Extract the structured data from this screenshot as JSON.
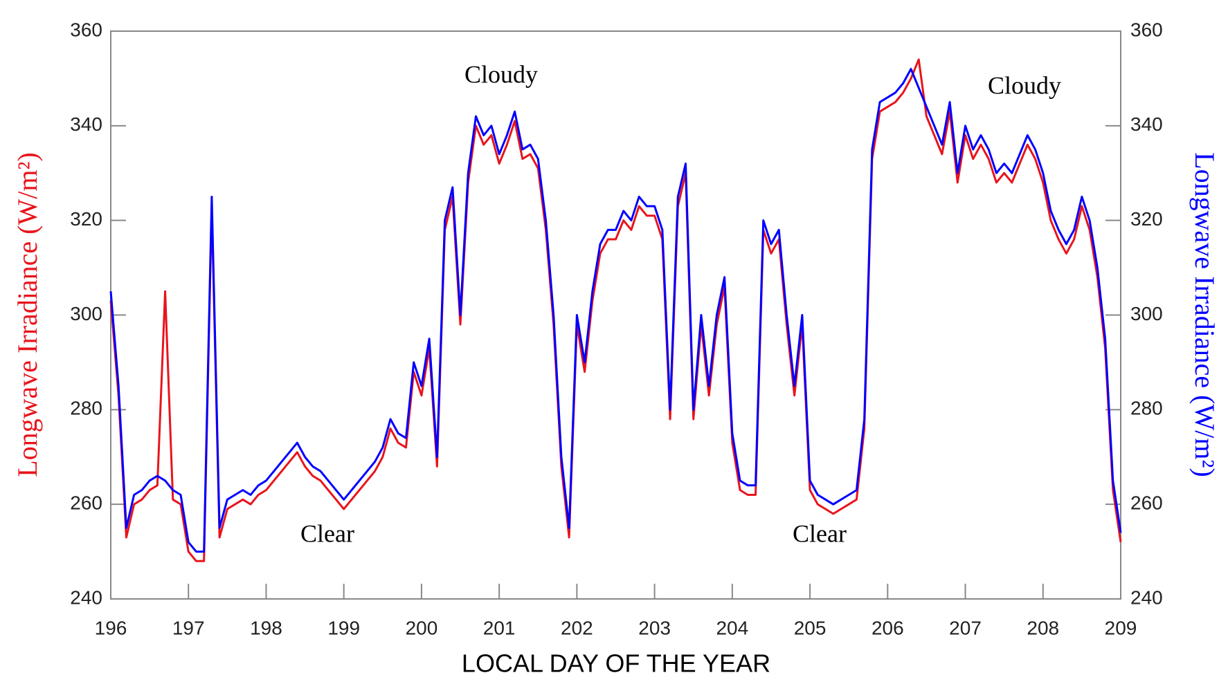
{
  "chart_data": {
    "type": "line",
    "xlabel": "LOCAL DAY OF THE YEAR",
    "ylabel": "Longwave Irradiance (W/m²)",
    "y2label": "Longwave Irradiance (W/m²)",
    "annotations": [
      "Cloudy",
      "Clear",
      "Clear",
      "Cloudy"
    ],
    "x": [
      196,
      196.1,
      196.2,
      196.3,
      196.4,
      196.5,
      196.6,
      196.7,
      196.8,
      196.9,
      197,
      197.1,
      197.2,
      197.3,
      197.4,
      197.5,
      197.6,
      197.7,
      197.8,
      197.9,
      198,
      198.1,
      198.2,
      198.3,
      198.4,
      198.5,
      198.6,
      198.7,
      198.8,
      198.9,
      199,
      199.1,
      199.2,
      199.3,
      199.4,
      199.5,
      199.6,
      199.7,
      199.8,
      199.9,
      200,
      200.1,
      200.2,
      200.3,
      200.4,
      200.5,
      200.6,
      200.7,
      200.8,
      200.9,
      201,
      201.1,
      201.2,
      201.3,
      201.4,
      201.5,
      201.6,
      201.7,
      201.8,
      201.9,
      202,
      202.1,
      202.2,
      202.3,
      202.4,
      202.5,
      202.6,
      202.7,
      202.8,
      202.9,
      203,
      203.1,
      203.2,
      203.3,
      203.4,
      203.5,
      203.6,
      203.7,
      203.8,
      203.9,
      204,
      204.1,
      204.2,
      204.3,
      204.4,
      204.5,
      204.6,
      204.7,
      204.8,
      204.9,
      205,
      205.1,
      205.2,
      205.3,
      205.4,
      205.5,
      205.6,
      205.7,
      205.8,
      205.9,
      206,
      206.1,
      206.2,
      206.3,
      206.4,
      206.5,
      206.6,
      206.7,
      206.8,
      206.9,
      207,
      207.1,
      207.2,
      207.3,
      207.4,
      207.5,
      207.6,
      207.7,
      207.8,
      207.9,
      208,
      208.1,
      208.2,
      208.3,
      208.4,
      208.5,
      208.6,
      208.7,
      208.8,
      208.9,
      209
    ],
    "series": [
      {
        "color": "#e8141c",
        "values": [
          303,
          283,
          253,
          260,
          261,
          263,
          264,
          305,
          261,
          260,
          250,
          248,
          248,
          323,
          253,
          259,
          260,
          261,
          260,
          262,
          263,
          265,
          267,
          269,
          271,
          268,
          266,
          265,
          263,
          261,
          259,
          261,
          263,
          265,
          267,
          270,
          276,
          273,
          272,
          288,
          283,
          293,
          268,
          318,
          325,
          298,
          328,
          340,
          336,
          338,
          332,
          336,
          341,
          333,
          334,
          331,
          318,
          298,
          268,
          253,
          298,
          288,
          303,
          313,
          316,
          316,
          320,
          318,
          323,
          321,
          321,
          316,
          278,
          323,
          330,
          278,
          298,
          283,
          298,
          306,
          273,
          263,
          262,
          262,
          318,
          313,
          316,
          298,
          283,
          298,
          263,
          260,
          259,
          258,
          259,
          260,
          261,
          276,
          333,
          343,
          344,
          345,
          347,
          350,
          354,
          342,
          338,
          334,
          343,
          328,
          338,
          333,
          336,
          333,
          328,
          330,
          328,
          332,
          336,
          333,
          328,
          320,
          316,
          313,
          316,
          323,
          318,
          308,
          293,
          263,
          252
        ]
      },
      {
        "color": "#0000ff",
        "axis": "y2",
        "values": [
          305,
          285,
          255,
          262,
          263,
          265,
          266,
          265,
          263,
          262,
          252,
          250,
          250,
          325,
          255,
          261,
          262,
          263,
          262,
          264,
          265,
          267,
          269,
          271,
          273,
          270,
          268,
          267,
          265,
          263,
          261,
          263,
          265,
          267,
          269,
          272,
          278,
          275,
          274,
          290,
          285,
          295,
          270,
          320,
          327,
          300,
          330,
          342,
          338,
          340,
          334,
          338,
          343,
          335,
          336,
          333,
          320,
          300,
          270,
          255,
          300,
          290,
          305,
          315,
          318,
          318,
          322,
          320,
          325,
          323,
          323,
          318,
          280,
          325,
          332,
          280,
          300,
          285,
          300,
          308,
          275,
          265,
          264,
          264,
          320,
          315,
          318,
          300,
          285,
          300,
          265,
          262,
          261,
          260,
          261,
          262,
          263,
          278,
          335,
          345,
          346,
          347,
          349,
          352,
          348,
          344,
          340,
          336,
          345,
          330,
          340,
          335,
          338,
          335,
          330,
          332,
          330,
          334,
          338,
          335,
          330,
          322,
          318,
          315,
          318,
          325,
          320,
          310,
          295,
          265,
          254
        ]
      }
    ],
    "xlim": [
      196,
      209
    ],
    "xticks": [
      196,
      197,
      198,
      199,
      200,
      201,
      202,
      203,
      204,
      205,
      206,
      207,
      208,
      209
    ],
    "ylim": [
      240,
      360
    ],
    "yticks": [
      240,
      260,
      280,
      300,
      320,
      340,
      360
    ],
    "y2lim": [
      240,
      360
    ],
    "y2ticks": [
      240,
      260,
      280,
      300,
      320,
      340,
      360
    ]
  }
}
